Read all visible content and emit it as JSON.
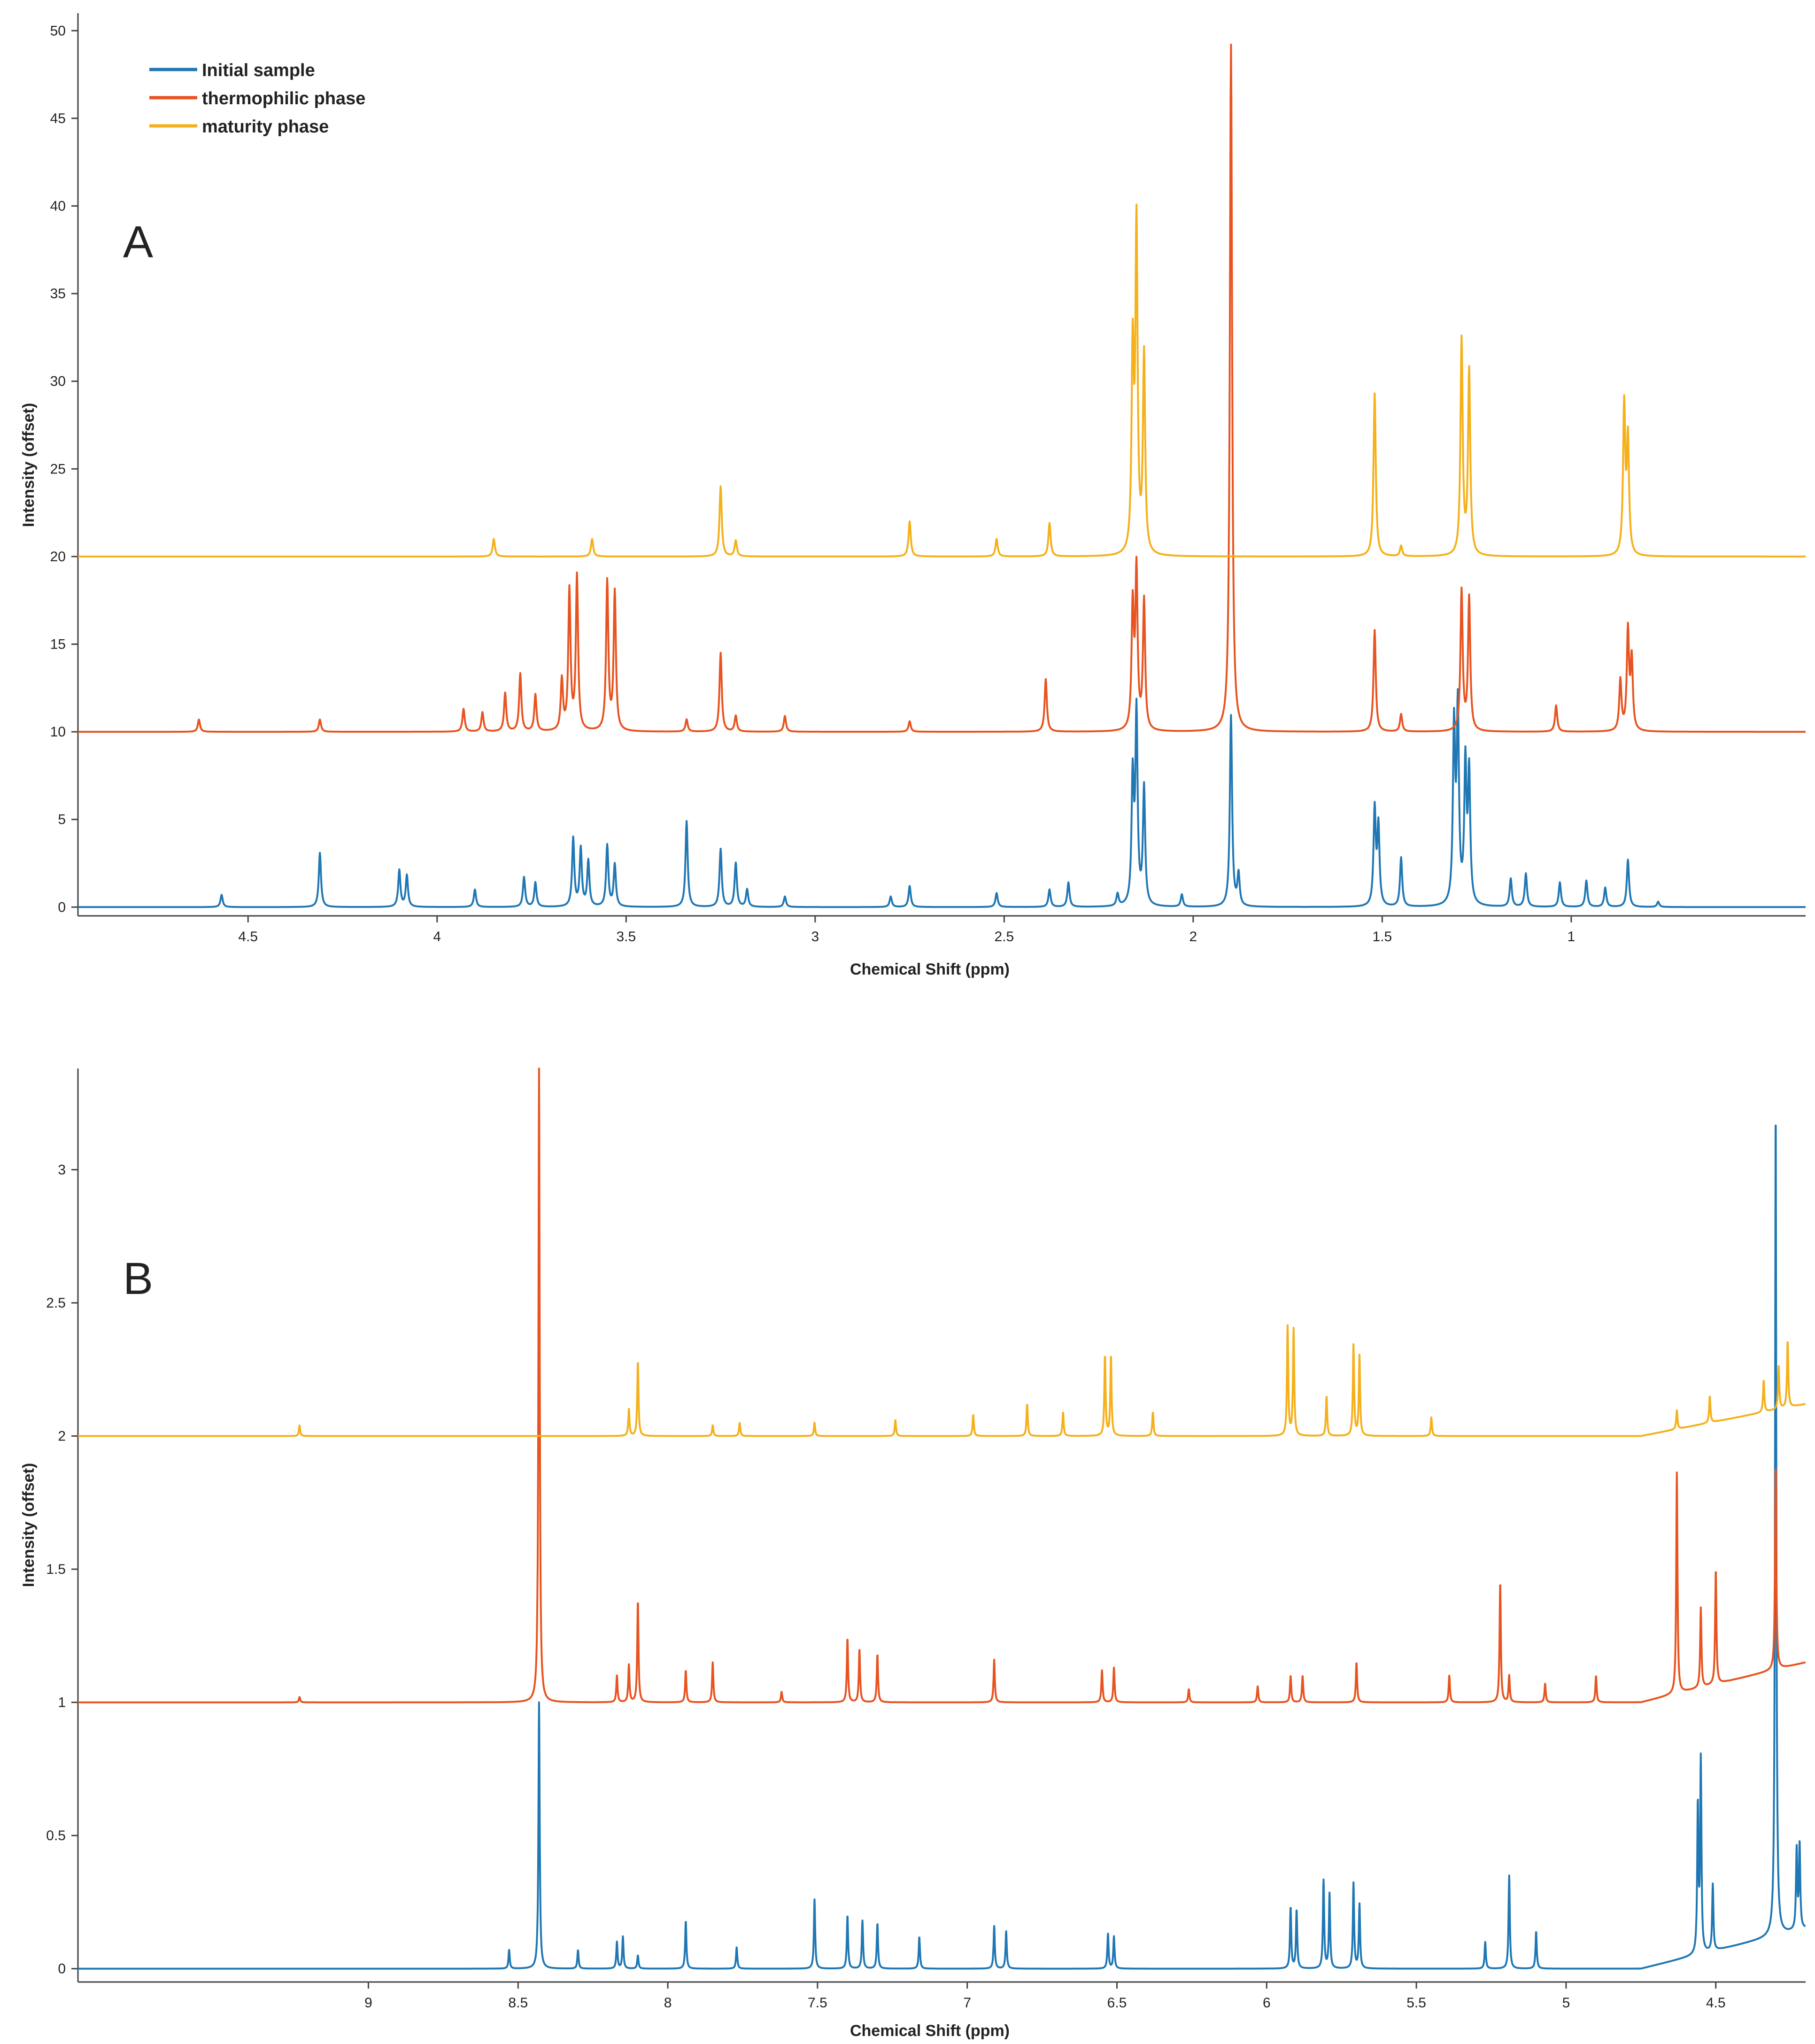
{
  "chart_data": [
    {
      "type": "line",
      "panel_label": "A",
      "xlabel": "Chemical Shift (ppm)",
      "ylabel": "Intensity (offset)",
      "x_reversed": true,
      "xlim": [
        4.95,
        0.38
      ],
      "ylim": [
        -0.5,
        51
      ],
      "xticks": [
        4.5,
        4,
        3.5,
        3,
        2.5,
        2,
        1.5,
        1
      ],
      "xtick_labels": [
        "4.5",
        "4",
        "3.5",
        "3",
        "2.5",
        "2",
        "1.5",
        "1"
      ],
      "yticks": [
        0,
        5,
        10,
        15,
        20,
        25,
        30,
        35,
        40,
        45,
        50
      ],
      "ytick_labels": [
        "0",
        "5",
        "10",
        "15",
        "20",
        "25",
        "30",
        "35",
        "40",
        "45",
        "50"
      ],
      "legend": {
        "placement": "top-left",
        "entries": [
          "Initial sample",
          "thermophilic phase",
          "maturity phase"
        ]
      },
      "series": [
        {
          "name": "Initial sample",
          "color": "#1f77b4",
          "offset": 0,
          "peaks": [
            [
              4.57,
              0.7
            ],
            [
              4.31,
              3.1
            ],
            [
              4.1,
              2.1
            ],
            [
              4.08,
              1.8
            ],
            [
              3.9,
              1.0
            ],
            [
              3.77,
              1.7
            ],
            [
              3.74,
              1.4
            ],
            [
              3.64,
              3.9
            ],
            [
              3.62,
              3.3
            ],
            [
              3.6,
              2.6
            ],
            [
              3.55,
              3.5
            ],
            [
              3.53,
              2.4
            ],
            [
              3.34,
              4.9
            ],
            [
              3.25,
              3.3
            ],
            [
              3.21,
              2.5
            ],
            [
              3.18,
              1.0
            ],
            [
              3.08,
              0.6
            ],
            [
              2.8,
              0.6
            ],
            [
              2.75,
              1.2
            ],
            [
              2.52,
              0.8
            ],
            [
              2.38,
              1.0
            ],
            [
              2.33,
              1.4
            ],
            [
              2.2,
              0.7
            ],
            [
              2.16,
              7.2
            ],
            [
              2.15,
              10.9
            ],
            [
              2.13,
              6.7
            ],
            [
              2.03,
              0.7
            ],
            [
              1.9,
              10.9
            ],
            [
              1.88,
              1.8
            ],
            [
              1.52,
              5.5
            ],
            [
              1.51,
              4.5
            ],
            [
              1.45,
              2.8
            ],
            [
              1.31,
              10.0
            ],
            [
              1.3,
              11.0
            ],
            [
              1.28,
              7.9
            ],
            [
              1.27,
              7.4
            ],
            [
              1.16,
              1.6
            ],
            [
              1.12,
              1.9
            ],
            [
              1.03,
              1.4
            ],
            [
              0.96,
              1.5
            ],
            [
              0.91,
              1.1
            ],
            [
              0.85,
              2.7
            ],
            [
              0.77,
              0.3
            ]
          ]
        },
        {
          "name": "thermophilic phase",
          "color": "#e8531f",
          "offset": 10,
          "peaks": [
            [
              4.63,
              0.7
            ],
            [
              4.31,
              0.7
            ],
            [
              3.93,
              1.3
            ],
            [
              3.88,
              1.1
            ],
            [
              3.82,
              2.2
            ],
            [
              3.78,
              3.3
            ],
            [
              3.74,
              2.1
            ],
            [
              3.67,
              2.9
            ],
            [
              3.65,
              8.0
            ],
            [
              3.63,
              8.8
            ],
            [
              3.55,
              8.5
            ],
            [
              3.53,
              7.9
            ],
            [
              3.34,
              0.7
            ],
            [
              3.25,
              4.5
            ],
            [
              3.21,
              0.9
            ],
            [
              3.08,
              0.9
            ],
            [
              2.75,
              0.6
            ],
            [
              2.39,
              3.0
            ],
            [
              2.16,
              7.0
            ],
            [
              2.15,
              9.0
            ],
            [
              2.13,
              7.4
            ],
            [
              1.9,
              39.2
            ],
            [
              1.52,
              5.8
            ],
            [
              1.45,
              1.0
            ],
            [
              1.29,
              8.0
            ],
            [
              1.27,
              7.6
            ],
            [
              1.04,
              1.5
            ],
            [
              0.87,
              2.9
            ],
            [
              0.85,
              5.7
            ],
            [
              0.84,
              4.0
            ]
          ]
        },
        {
          "name": "maturity phase",
          "color": "#f5b01a",
          "offset": 20,
          "peaks": [
            [
              3.85,
              1.0
            ],
            [
              3.59,
              1.0
            ],
            [
              3.25,
              4.0
            ],
            [
              3.21,
              0.9
            ],
            [
              2.75,
              2.0
            ],
            [
              2.52,
              1.0
            ],
            [
              2.38,
              1.9
            ],
            [
              2.16,
              11.4
            ],
            [
              2.15,
              18.5
            ],
            [
              2.13,
              11.3
            ],
            [
              1.52,
              9.3
            ],
            [
              1.45,
              0.6
            ],
            [
              1.29,
              12.3
            ],
            [
              1.27,
              10.5
            ],
            [
              0.86,
              8.5
            ],
            [
              0.85,
              6.5
            ]
          ]
        }
      ]
    },
    {
      "type": "line",
      "panel_label": "B",
      "xlabel": "Chemical Shift (ppm)",
      "ylabel": "Intensity (offset)",
      "x_reversed": true,
      "xlim": [
        9.97,
        4.2
      ],
      "ylim": [
        -0.05,
        3.38
      ],
      "xticks": [
        9,
        8.5,
        8,
        7.5,
        7,
        6.5,
        6,
        5.5,
        5,
        4.5
      ],
      "xtick_labels": [
        "9",
        "8.5",
        "8",
        "7.5",
        "7",
        "6.5",
        "6",
        "5.5",
        "5",
        "4.5"
      ],
      "yticks": [
        0,
        0.5,
        1,
        1.5,
        2,
        2.5,
        3
      ],
      "ytick_labels": [
        "0",
        "0.5",
        "1",
        "1.5",
        "2",
        "2.5",
        "3"
      ],
      "series": [
        {
          "name": "Initial sample",
          "color": "#1f77b4",
          "offset": 0,
          "peaks": [
            [
              8.53,
              0.07
            ],
            [
              8.43,
              1.0
            ],
            [
              8.3,
              0.07
            ],
            [
              8.17,
              0.1
            ],
            [
              8.15,
              0.12
            ],
            [
              8.1,
              0.05
            ],
            [
              7.94,
              0.18
            ],
            [
              7.77,
              0.08
            ],
            [
              7.51,
              0.26
            ],
            [
              7.4,
              0.2
            ],
            [
              7.35,
              0.18
            ],
            [
              7.3,
              0.17
            ],
            [
              7.16,
              0.12
            ],
            [
              6.91,
              0.16
            ],
            [
              6.87,
              0.14
            ],
            [
              6.53,
              0.13
            ],
            [
              6.51,
              0.12
            ],
            [
              5.92,
              0.23
            ],
            [
              5.9,
              0.22
            ],
            [
              5.81,
              0.33
            ],
            [
              5.79,
              0.28
            ],
            [
              5.71,
              0.32
            ],
            [
              5.69,
              0.24
            ],
            [
              5.27,
              0.1
            ],
            [
              5.19,
              0.35
            ],
            [
              5.1,
              0.14
            ],
            [
              4.56,
              0.55
            ],
            [
              4.55,
              0.72
            ],
            [
              4.51,
              0.25
            ],
            [
              4.3,
              3.12
            ],
            [
              4.23,
              0.3
            ],
            [
              4.22,
              0.32
            ]
          ],
          "baseline_rise": [
            4.75,
            0.15
          ]
        },
        {
          "name": "thermophilic phase",
          "color": "#e8531f",
          "offset": 1,
          "peaks": [
            [
              9.23,
              0.02
            ],
            [
              8.43,
              2.38
            ],
            [
              8.17,
              0.1
            ],
            [
              8.13,
              0.14
            ],
            [
              8.1,
              0.38
            ],
            [
              7.94,
              0.12
            ],
            [
              7.85,
              0.15
            ],
            [
              7.62,
              0.04
            ],
            [
              7.4,
              0.24
            ],
            [
              7.36,
              0.2
            ],
            [
              7.3,
              0.18
            ],
            [
              6.91,
              0.16
            ],
            [
              6.55,
              0.12
            ],
            [
              6.51,
              0.13
            ],
            [
              6.26,
              0.05
            ],
            [
              6.03,
              0.06
            ],
            [
              5.92,
              0.1
            ],
            [
              5.88,
              0.1
            ],
            [
              5.7,
              0.15
            ],
            [
              5.39,
              0.1
            ],
            [
              5.22,
              0.45
            ],
            [
              5.19,
              0.1
            ],
            [
              5.07,
              0.07
            ],
            [
              4.9,
              0.1
            ],
            [
              4.63,
              0.83
            ],
            [
              4.55,
              0.3
            ],
            [
              4.5,
              0.43
            ],
            [
              4.3,
              0.77
            ]
          ],
          "baseline_rise": [
            4.75,
            0.15
          ]
        },
        {
          "name": "maturity phase",
          "color": "#f5b01a",
          "offset": 2,
          "peaks": [
            [
              9.23,
              0.04
            ],
            [
              8.13,
              0.1
            ],
            [
              8.1,
              0.28
            ],
            [
              7.85,
              0.04
            ],
            [
              7.76,
              0.05
            ],
            [
              7.51,
              0.05
            ],
            [
              7.24,
              0.06
            ],
            [
              6.98,
              0.08
            ],
            [
              6.8,
              0.12
            ],
            [
              6.68,
              0.09
            ],
            [
              6.54,
              0.3
            ],
            [
              6.52,
              0.3
            ],
            [
              6.38,
              0.09
            ],
            [
              5.93,
              0.41
            ],
            [
              5.91,
              0.4
            ],
            [
              5.8,
              0.15
            ],
            [
              5.71,
              0.34
            ],
            [
              5.69,
              0.3
            ],
            [
              5.45,
              0.07
            ],
            [
              4.63,
              0.07
            ],
            [
              4.52,
              0.1
            ],
            [
              4.34,
              0.12
            ],
            [
              4.29,
              0.16
            ],
            [
              4.26,
              0.25
            ]
          ],
          "baseline_rise": [
            4.75,
            0.12
          ]
        }
      ]
    }
  ]
}
